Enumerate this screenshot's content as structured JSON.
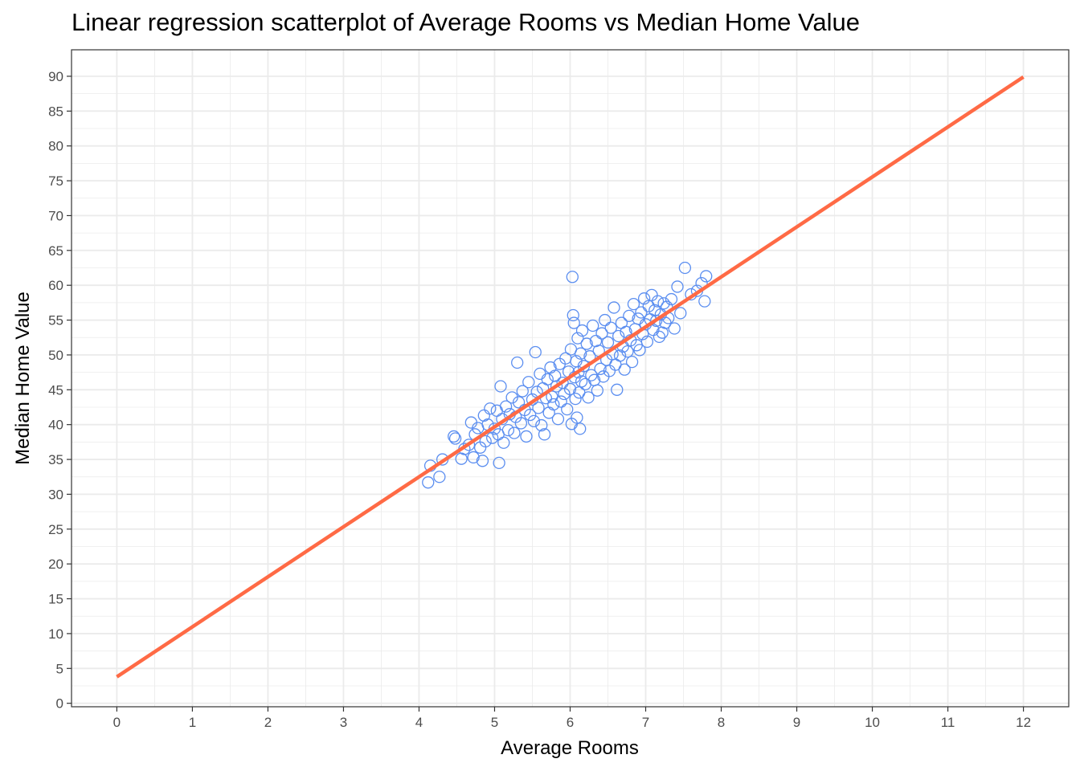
{
  "chart_data": {
    "type": "scatter",
    "title": "Linear regression scatterplot of Average Rooms vs Median Home Value",
    "xlabel": "Average Rooms",
    "ylabel": "Median Home Value",
    "xlim": [
      -0.6,
      12.6
    ],
    "ylim": [
      -0.5,
      93.8
    ],
    "x_ticks": [
      0,
      1,
      2,
      3,
      4,
      5,
      6,
      7,
      8,
      9,
      10,
      11,
      12
    ],
    "y_ticks": [
      0,
      5,
      10,
      15,
      20,
      25,
      30,
      35,
      40,
      45,
      50,
      55,
      60,
      65,
      70,
      75,
      80,
      85,
      90
    ],
    "grid": true,
    "colors": {
      "points": "#5b8ef0",
      "line": "#ff6a45",
      "grid": "#ebebeb",
      "panel_border": "#333333"
    },
    "regression_line": {
      "x": [
        0,
        12
      ],
      "y": [
        3.8,
        89.9
      ]
    },
    "points": [
      [
        4.12,
        31.7
      ],
      [
        4.15,
        34.1
      ],
      [
        4.27,
        32.5
      ],
      [
        4.31,
        35.0
      ],
      [
        4.46,
        38.3
      ],
      [
        4.48,
        38.0
      ],
      [
        4.56,
        35.1
      ],
      [
        4.6,
        36.5
      ],
      [
        4.66,
        37.1
      ],
      [
        4.69,
        40.3
      ],
      [
        4.72,
        35.3
      ],
      [
        4.74,
        38.6
      ],
      [
        4.78,
        39.5
      ],
      [
        4.81,
        36.7
      ],
      [
        4.84,
        34.8
      ],
      [
        4.86,
        41.3
      ],
      [
        4.88,
        37.6
      ],
      [
        4.91,
        40.0
      ],
      [
        4.94,
        42.3
      ],
      [
        4.97,
        38.1
      ],
      [
        5.0,
        39.4
      ],
      [
        5.03,
        42.0
      ],
      [
        5.05,
        38.6
      ],
      [
        5.06,
        34.5
      ],
      [
        5.08,
        45.5
      ],
      [
        5.1,
        40.8
      ],
      [
        5.12,
        37.4
      ],
      [
        5.15,
        42.6
      ],
      [
        5.18,
        39.2
      ],
      [
        5.2,
        41.5
      ],
      [
        5.23,
        43.9
      ],
      [
        5.26,
        38.8
      ],
      [
        5.28,
        41.1
      ],
      [
        5.3,
        48.9
      ],
      [
        5.32,
        43.2
      ],
      [
        5.35,
        40.2
      ],
      [
        5.37,
        44.8
      ],
      [
        5.4,
        42.1
      ],
      [
        5.42,
        38.3
      ],
      [
        5.45,
        46.1
      ],
      [
        5.47,
        41.4
      ],
      [
        5.5,
        43.6
      ],
      [
        5.52,
        40.5
      ],
      [
        5.54,
        50.4
      ],
      [
        5.56,
        44.7
      ],
      [
        5.58,
        42.4
      ],
      [
        5.6,
        47.3
      ],
      [
        5.62,
        39.9
      ],
      [
        5.64,
        45.2
      ],
      [
        5.66,
        38.6
      ],
      [
        5.68,
        43.8
      ],
      [
        5.7,
        46.5
      ],
      [
        5.72,
        41.7
      ],
      [
        5.74,
        48.2
      ],
      [
        5.76,
        44.0
      ],
      [
        5.78,
        42.9
      ],
      [
        5.8,
        47.0
      ],
      [
        5.82,
        45.5
      ],
      [
        5.84,
        40.8
      ],
      [
        5.86,
        48.7
      ],
      [
        5.88,
        43.3
      ],
      [
        5.9,
        46.0
      ],
      [
        5.92,
        44.4
      ],
      [
        5.94,
        49.5
      ],
      [
        5.96,
        42.2
      ],
      [
        5.98,
        47.6
      ],
      [
        6.0,
        45.1
      ],
      [
        6.01,
        50.8
      ],
      [
        6.02,
        40.1
      ],
      [
        6.03,
        61.2
      ],
      [
        6.04,
        55.7
      ],
      [
        6.05,
        54.6
      ],
      [
        6.06,
        46.8
      ],
      [
        6.07,
        43.7
      ],
      [
        6.08,
        49.1
      ],
      [
        6.09,
        41.0
      ],
      [
        6.1,
        52.4
      ],
      [
        6.11,
        47.5
      ],
      [
        6.12,
        44.6
      ],
      [
        6.13,
        39.4
      ],
      [
        6.14,
        50.2
      ],
      [
        6.15,
        46.2
      ],
      [
        6.16,
        53.5
      ],
      [
        6.18,
        48.4
      ],
      [
        6.2,
        45.8
      ],
      [
        6.22,
        51.6
      ],
      [
        6.24,
        43.9
      ],
      [
        6.26,
        49.8
      ],
      [
        6.28,
        47.1
      ],
      [
        6.3,
        54.2
      ],
      [
        6.32,
        46.4
      ],
      [
        6.34,
        52.0
      ],
      [
        6.36,
        44.9
      ],
      [
        6.38,
        50.6
      ],
      [
        6.4,
        48.0
      ],
      [
        6.42,
        53.1
      ],
      [
        6.44,
        46.9
      ],
      [
        6.46,
        55.0
      ],
      [
        6.48,
        49.3
      ],
      [
        6.5,
        51.8
      ],
      [
        6.52,
        47.7
      ],
      [
        6.54,
        53.9
      ],
      [
        6.56,
        50.1
      ],
      [
        6.58,
        56.8
      ],
      [
        6.6,
        48.6
      ],
      [
        6.62,
        45.0
      ],
      [
        6.64,
        52.7
      ],
      [
        6.66,
        49.9
      ],
      [
        6.68,
        54.6
      ],
      [
        6.7,
        51.2
      ],
      [
        6.72,
        47.9
      ],
      [
        6.74,
        53.3
      ],
      [
        6.76,
        50.5
      ],
      [
        6.78,
        55.6
      ],
      [
        6.8,
        52.1
      ],
      [
        6.82,
        49.0
      ],
      [
        6.84,
        57.3
      ],
      [
        6.86,
        53.7
      ],
      [
        6.88,
        51.4
      ],
      [
        6.9,
        55.2
      ],
      [
        6.92,
        50.7
      ],
      [
        6.94,
        56.1
      ],
      [
        6.96,
        53.0
      ],
      [
        6.98,
        58.1
      ],
      [
        7.0,
        54.4
      ],
      [
        7.02,
        51.9
      ],
      [
        7.04,
        57.0
      ],
      [
        7.06,
        55.1
      ],
      [
        7.08,
        58.6
      ],
      [
        7.1,
        53.6
      ],
      [
        7.12,
        56.4
      ],
      [
        7.14,
        54.9
      ],
      [
        7.16,
        57.7
      ],
      [
        7.18,
        52.6
      ],
      [
        7.2,
        55.8
      ],
      [
        7.22,
        53.2
      ],
      [
        7.24,
        57.4
      ],
      [
        7.26,
        54.6
      ],
      [
        7.28,
        56.9
      ],
      [
        7.3,
        55.3
      ],
      [
        7.34,
        58.0
      ],
      [
        7.38,
        53.8
      ],
      [
        7.42,
        59.8
      ],
      [
        7.46,
        56.0
      ],
      [
        7.52,
        62.5
      ],
      [
        7.6,
        58.7
      ],
      [
        7.68,
        59.2
      ],
      [
        7.74,
        60.3
      ],
      [
        7.78,
        57.7
      ],
      [
        7.8,
        61.3
      ]
    ]
  }
}
